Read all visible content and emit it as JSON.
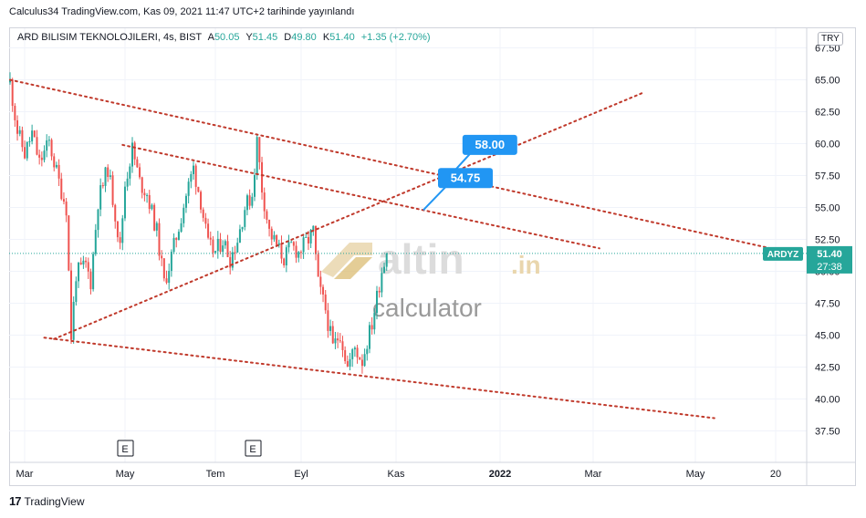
{
  "header": {
    "publish_line": "Calculus34 TradingView.com, Kas 09, 2021 11:47 UTC+2 tarihinde yayınlandı",
    "symbol_label": "ARD BILISIM TEKNOLOJILERI, 4s, BIST",
    "ohlc": [
      {
        "key": "A",
        "value": "50.05"
      },
      {
        "key": "Y",
        "value": "51.45"
      },
      {
        "key": "D",
        "value": "49.80"
      },
      {
        "key": "K",
        "value": "51.40"
      }
    ],
    "change": "+1.35 (+2.70%)",
    "currency": "TRY"
  },
  "footer": {
    "brand": "TradingView",
    "logo_mark": "17"
  },
  "watermark": {
    "brand": "altin",
    "domain": ".in",
    "sub": "calculator"
  },
  "colors": {
    "up": "#26a69a",
    "down": "#ef5350",
    "trendline": "#c0392b",
    "callout": "#2196f3",
    "last_price_tag": "#26a69a",
    "grid": "#f0f3fa"
  },
  "chart_data": {
    "type": "candlestick",
    "symbol": "ARDYZ",
    "timeframe": "4s",
    "y_ticks": [
      37.5,
      40.0,
      42.5,
      45.0,
      47.5,
      50.0,
      52.5,
      55.0,
      57.5,
      60.0,
      62.5,
      65.0,
      67.5
    ],
    "ylim": [
      36.25,
      68.0
    ],
    "x_ticks": [
      "Mar",
      "May",
      "Tem",
      "Eyl",
      "Kas",
      "2022",
      "Mar",
      "May",
      "20"
    ],
    "last_price": {
      "label": "ARDYZ",
      "price": "51.40",
      "countdown": "27:38"
    },
    "earnings_markers": [
      "E",
      "E"
    ],
    "price_path": [
      [
        0,
        64.8
      ],
      [
        3,
        61.0
      ],
      [
        6,
        59.2
      ],
      [
        9,
        60.8
      ],
      [
        12,
        58.5
      ],
      [
        16,
        60.1
      ],
      [
        20,
        57.0
      ],
      [
        23,
        55.0
      ],
      [
        25,
        44.9
      ],
      [
        27,
        49.8
      ],
      [
        31,
        50.5
      ],
      [
        33,
        49.2
      ],
      [
        36,
        55.5
      ],
      [
        40,
        58.1
      ],
      [
        43,
        54.5
      ],
      [
        45,
        51.8
      ],
      [
        47,
        56.8
      ],
      [
        50,
        59.6
      ],
      [
        53,
        57.0
      ],
      [
        56,
        56.1
      ],
      [
        60,
        53.1
      ],
      [
        63,
        49.1
      ],
      [
        65,
        50.4
      ],
      [
        69,
        53.5
      ],
      [
        72,
        56.0
      ],
      [
        75,
        58.1
      ],
      [
        78,
        55.5
      ],
      [
        81,
        52.0
      ],
      [
        84,
        51.5
      ],
      [
        87,
        52.5
      ],
      [
        90,
        51.0
      ],
      [
        93,
        52.5
      ],
      [
        96,
        55.0
      ],
      [
        99,
        56.0
      ],
      [
        101,
        60.2
      ],
      [
        103,
        56.5
      ],
      [
        106,
        53.1
      ],
      [
        109,
        52.0
      ],
      [
        112,
        51.0
      ],
      [
        115,
        52.0
      ],
      [
        118,
        51.5
      ],
      [
        122,
        52.5
      ],
      [
        124,
        53.1
      ],
      [
        126,
        49.0
      ],
      [
        129,
        47.0
      ],
      [
        132,
        44.0
      ],
      [
        135,
        45.2
      ],
      [
        138,
        42.5
      ],
      [
        141,
        44.0
      ],
      [
        144,
        43.0
      ],
      [
        146,
        44.5
      ],
      [
        148,
        45.9
      ],
      [
        150,
        48.0
      ],
      [
        152,
        50.1
      ],
      [
        154,
        51.4
      ]
    ],
    "volatility": 0.9,
    "trendlines": [
      {
        "name": "upper",
        "from": [
          0,
          65.0
        ],
        "to": [
          311,
          51.8
        ]
      },
      {
        "name": "mid",
        "from": [
          46,
          59.9
        ],
        "to": [
          241,
          51.8
        ]
      },
      {
        "name": "lower",
        "from": [
          14,
          44.8
        ],
        "to": [
          288,
          38.5
        ]
      },
      {
        "name": "rising",
        "from": [
          18,
          44.7
        ],
        "to": [
          259,
          64.0
        ]
      }
    ],
    "callouts": [
      {
        "label": "58.00",
        "tip": [
          179,
          57.3
        ],
        "box": [
          185,
          59.9
        ]
      },
      {
        "label": "54.75",
        "tip": [
          169,
          54.8
        ],
        "box": [
          175,
          57.3
        ]
      }
    ]
  }
}
